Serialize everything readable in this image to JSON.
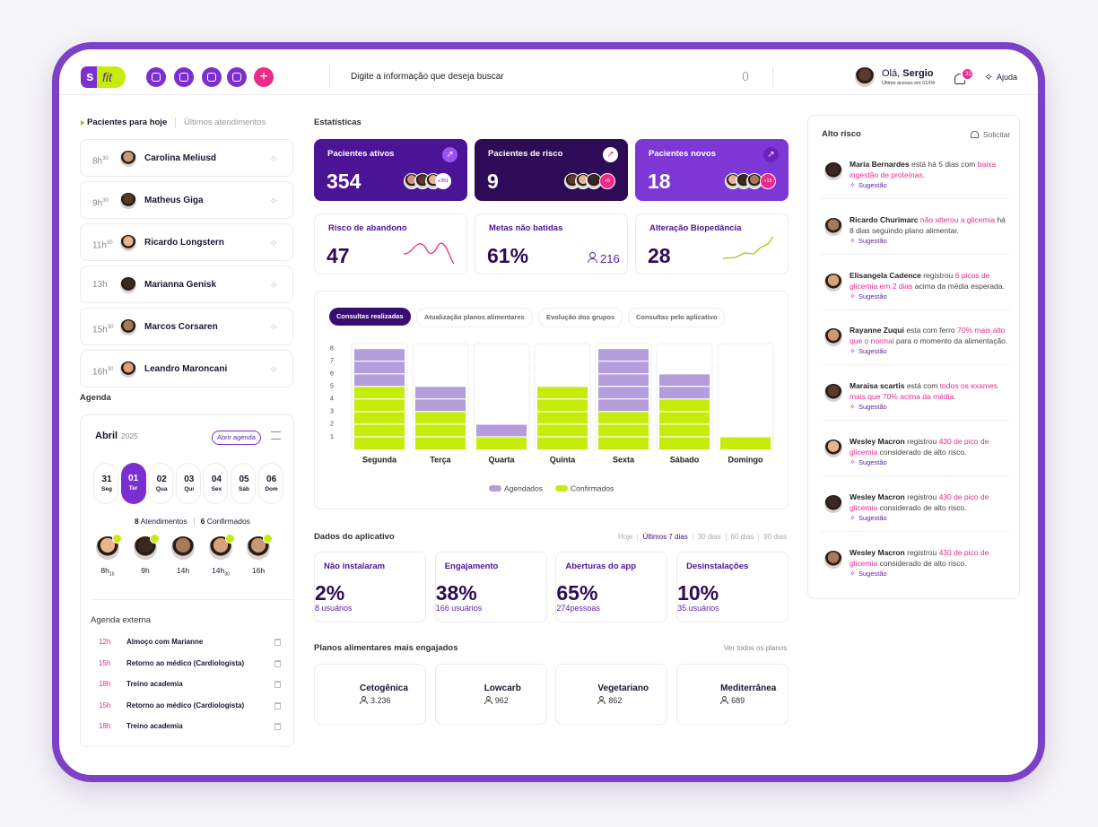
{
  "header": {
    "logo": "s",
    "logo_suffix": "fit",
    "search_placeholder": "Digite a informação que deseja buscar",
    "greeting": "Olá,",
    "user_name": "Sergio",
    "last_access": "Último acesso em 01/04",
    "notifications": "32",
    "help": "Ajuda"
  },
  "patients_today": {
    "tabs": [
      "Pacientes para hoje",
      "Últimos atendimentos"
    ],
    "items": [
      {
        "hour": "8h",
        "minutes": "30",
        "name": "Carolina Meliusd"
      },
      {
        "hour": "9h",
        "minutes": "30",
        "name": "Matheus Giga"
      },
      {
        "hour": "11h",
        "minutes": "30",
        "name": "Ricardo Longstern"
      },
      {
        "hour": "13h",
        "name": "Marianna Genisk"
      },
      {
        "hour": "15h",
        "minutes": "30",
        "name": "Marcos Corsaren"
      },
      {
        "hour": "16h",
        "minutes": "30",
        "name": "Leandro Maroncani"
      }
    ]
  },
  "agenda": {
    "title": "Agenda",
    "month": "Abril",
    "year": "2025",
    "open_button": "Abrir agenda",
    "days": [
      {
        "day": "31",
        "weekday": "Seg"
      },
      {
        "day": "01",
        "weekday": "Ter"
      },
      {
        "day": "02",
        "weekday": "Qua"
      },
      {
        "day": "03",
        "weekday": "Qui"
      },
      {
        "day": "04",
        "weekday": "Sex"
      },
      {
        "day": "05",
        "weekday": "Sáb"
      },
      {
        "day": "06",
        "weekday": "Dom"
      }
    ],
    "selected_day": 1,
    "appointments_count": "8",
    "appointments_label": "Atendimentos",
    "confirmed_count": "6",
    "confirmed_label": "Confirmados",
    "slots": [
      {
        "hour": "8h",
        "sub": "15",
        "confirmed": true
      },
      {
        "hour": "9h",
        "confirmed": true
      },
      {
        "hour": "14h",
        "confirmed": false
      },
      {
        "hour": "14h",
        "sub": "30",
        "confirmed": true
      },
      {
        "hour": "16h",
        "confirmed": true
      }
    ],
    "external_title": "Agenda externa",
    "external": [
      {
        "time": "12h",
        "text": "Almoço com Marianne"
      },
      {
        "time": "15h",
        "text": "Retorno ao médico (Cardiologista)"
      },
      {
        "time": "18h",
        "text": "Treino academia"
      },
      {
        "time": "15h",
        "text": "Retorno ao médico (Cardiologista)"
      },
      {
        "time": "18h",
        "text": "Treino academia"
      }
    ]
  },
  "statistics": {
    "title": "Estatísticas",
    "highlights": [
      {
        "label": "Pacientes ativos",
        "value": "354",
        "extra": "+351"
      },
      {
        "label": "Pacientes de risco",
        "value": "9",
        "extra": "+5"
      },
      {
        "label": "Pacientes novos",
        "value": "18",
        "extra": "+15"
      }
    ],
    "metrics": [
      {
        "label": "Risco de abandono",
        "value": "47"
      },
      {
        "label": "Metas não batidas",
        "value": "61%",
        "count": "216"
      },
      {
        "label": "Alteração Biopedância",
        "value": "28"
      }
    ]
  },
  "chart_panel": {
    "tabs": [
      "Consultas realizadas",
      "Atualização planos alimentares",
      "Evolução dos grupos",
      "Consultas pelo aplicativo"
    ],
    "active_tab": 0
  },
  "chart_data": {
    "type": "bar",
    "stacked": true,
    "categories": [
      "Segunda",
      "Terça",
      "Quarta",
      "Quinta",
      "Sexta",
      "Sábado",
      "Domingo"
    ],
    "series": [
      {
        "name": "Agendados",
        "color": "#b39ddb",
        "values": [
          3,
          2,
          1,
          0,
          5,
          2,
          0
        ]
      },
      {
        "name": "Confirmados",
        "color": "#c6ec0b",
        "values": [
          5,
          3,
          1,
          5,
          3,
          4,
          1
        ]
      }
    ],
    "ylim": [
      0,
      8.4
    ],
    "yticks": [
      1,
      2,
      3,
      4,
      5,
      6,
      7,
      8
    ],
    "grid": true
  },
  "app_data": {
    "title": "Dados do aplicativo",
    "periods": [
      "Hoje",
      "Últimos 7 dias",
      "30 dias",
      "60 dias",
      "90 dias"
    ],
    "active_period": 1,
    "cards": [
      {
        "label": "Não instalaram",
        "value": "2%",
        "sub": "8 usuários"
      },
      {
        "label": "Engajamento",
        "value": "38%",
        "sub": "166 usuários"
      },
      {
        "label": "Aberturas do app",
        "value": "65%",
        "sub": "274pessoas"
      },
      {
        "label": "Desinstalações",
        "value": "10%",
        "sub": "35 usuários"
      }
    ]
  },
  "meal_plans": {
    "title": "Planos alimentares mais engajados",
    "link": "Ver todos os planos",
    "plans": [
      {
        "name": "Cetogênica",
        "count": "3.236"
      },
      {
        "name": "Lowcarb",
        "count": "962"
      },
      {
        "name": "Vegetariano",
        "count": "862"
      },
      {
        "name": "Mediterrânea",
        "count": "689"
      }
    ]
  },
  "high_risk": {
    "title": "Alto risco",
    "action": "Solicitar",
    "items": [
      {
        "name": "Maria Bernardes",
        "before": "está há 5 dias com",
        "highlight": "baixa ingestão de proteínas.",
        "suggestion": "Sugestão"
      },
      {
        "name": "Ricardo Churimarc",
        "highlight": "não alterou a glicemia",
        "after": "há 8 dias seguindo plano alimentar.",
        "suggestion": "Sugestão"
      },
      {
        "name": "Elisangela Cadence",
        "before": "registrou",
        "highlight": "6 picos de glicemia em 2 dias",
        "after": "acima da média esperada.",
        "suggestion": "Sugestão"
      },
      {
        "name": "Rayanne Zuqui",
        "before": "esta com ferro",
        "highlight": "70% mais alto que o normal",
        "after": "para o momento da alimentação.",
        "suggestion": "Sugestão"
      },
      {
        "name": "Maraisa scartis",
        "before": "está com",
        "highlight": "todos os exames mais que 70% acima da média.",
        "suggestion": "Sugestão"
      },
      {
        "name": "Wesley Macron",
        "before": "registrou",
        "highlight": "430 de pico de glicemia",
        "after": "considerado de alto risco.",
        "suggestion": "Sugestão"
      },
      {
        "name": "Wesley Macron",
        "before": "registrou",
        "highlight": "430 de pico de glicemia",
        "after": "considerado de alto risco.",
        "suggestion": "Sugestão"
      },
      {
        "name": "Wesley Macron",
        "before": "registrou",
        "highlight": "430 de pico de glicemia",
        "after": "considerado de alto risco.",
        "suggestion": "Sugestão"
      }
    ]
  }
}
